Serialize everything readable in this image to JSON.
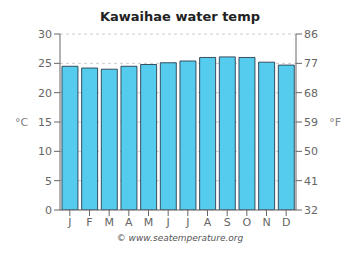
{
  "chart_data": {
    "type": "bar",
    "title": "Kawaihae water temp",
    "categories": [
      "J",
      "F",
      "M",
      "A",
      "M",
      "J",
      "J",
      "A",
      "S",
      "O",
      "N",
      "D"
    ],
    "values": [
      24.5,
      24.2,
      24.0,
      24.5,
      24.8,
      25.1,
      25.4,
      26.0,
      26.1,
      26.0,
      25.2,
      24.7
    ],
    "color": "#55ccee",
    "ylim": [
      0,
      30
    ],
    "yticks": [
      0,
      5,
      10,
      15,
      20,
      25,
      30
    ],
    "y2lim": [
      32,
      86
    ],
    "y2ticks": [
      32,
      41,
      50,
      59,
      68,
      77,
      86
    ],
    "ylabel": "°C",
    "y2label": "°F",
    "grid": true,
    "annotations": [
      "© www.seatemperature.org"
    ]
  }
}
